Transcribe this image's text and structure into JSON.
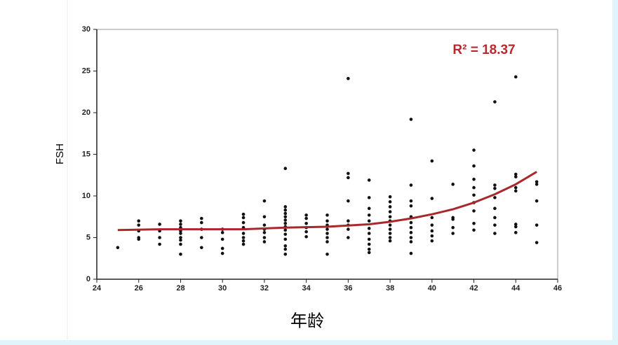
{
  "chart_data": {
    "type": "scatter",
    "annotation": "R² = 18.37",
    "annotation_color": "#b8292f",
    "x_label": "年龄",
    "y_label": "FSH",
    "xlim": [
      24,
      46
    ],
    "ylim": [
      0,
      30
    ],
    "xticks": [
      24,
      26,
      28,
      30,
      32,
      34,
      36,
      38,
      40,
      42,
      44,
      46
    ],
    "yticks": [
      0,
      5,
      10,
      15,
      20,
      25,
      30
    ],
    "series": [
      {
        "type": "scatter",
        "color": "#111111",
        "x": [
          25,
          26,
          26,
          26,
          26,
          26,
          27,
          27,
          27,
          27,
          28,
          28,
          28,
          28,
          28,
          28,
          28,
          28,
          28,
          29,
          29,
          29,
          29,
          29,
          30,
          30,
          30,
          30,
          30,
          31,
          31,
          31,
          31,
          31,
          31,
          31,
          31,
          32,
          32,
          32,
          32,
          32,
          32,
          32,
          33,
          33,
          33,
          33,
          33,
          33,
          33,
          33,
          33,
          33,
          33,
          33,
          33,
          33,
          34,
          34,
          34,
          34,
          34,
          34,
          35,
          35,
          35,
          35,
          35,
          35,
          35,
          35,
          36,
          36,
          36,
          36,
          36,
          36,
          36,
          36,
          37,
          37,
          37,
          37,
          37,
          37,
          37,
          37,
          37,
          37,
          37,
          38,
          38,
          38,
          38,
          38,
          38,
          38,
          38,
          38,
          38,
          38,
          39,
          39,
          39,
          39,
          39,
          39,
          39,
          39,
          39,
          39,
          39,
          40,
          40,
          40,
          40,
          40,
          40,
          40,
          41,
          41,
          41,
          41,
          41,
          42,
          42,
          42,
          42,
          42,
          42,
          42,
          42,
          42,
          43,
          43,
          43,
          43,
          43,
          43,
          43,
          43,
          44,
          44,
          44,
          44,
          44,
          44,
          44,
          44,
          45,
          45,
          45,
          45,
          45
        ],
        "values": [
          3.8,
          7.0,
          6.5,
          5.8,
          5.0,
          4.8,
          6.6,
          5.8,
          5.0,
          4.2,
          7.0,
          6.6,
          6.2,
          5.8,
          5.5,
          5.0,
          4.7,
          4.2,
          3.0,
          7.3,
          6.8,
          6.0,
          5.0,
          3.8,
          6.0,
          5.6,
          4.8,
          3.7,
          3.1,
          7.8,
          7.4,
          6.8,
          6.2,
          5.5,
          5.0,
          4.6,
          4.2,
          9.4,
          7.5,
          6.5,
          6.0,
          5.6,
          5.0,
          4.5,
          13.3,
          8.7,
          8.3,
          7.9,
          7.5,
          7.1,
          6.7,
          6.3,
          5.9,
          5.4,
          4.8,
          4.0,
          3.6,
          3.0,
          7.7,
          7.3,
          6.7,
          6.2,
          5.7,
          5.1,
          7.7,
          7.0,
          6.5,
          6.0,
          5.5,
          5.0,
          4.5,
          3.0,
          24.1,
          12.7,
          12.2,
          9.4,
          7.0,
          6.5,
          6.0,
          5.0,
          11.9,
          9.8,
          8.5,
          7.7,
          7.0,
          6.1,
          5.5,
          4.8,
          4.2,
          3.6,
          3.2,
          9.9,
          9.3,
          8.7,
          8.1,
          7.5,
          7.0,
          6.5,
          6.0,
          5.5,
          5.0,
          4.6,
          19.2,
          11.3,
          9.4,
          8.8,
          7.5,
          6.8,
          6.2,
          5.6,
          5.0,
          4.5,
          3.1,
          14.2,
          9.7,
          7.4,
          6.5,
          5.8,
          5.2,
          4.6,
          11.4,
          7.4,
          7.2,
          6.2,
          5.5,
          15.5,
          13.6,
          12.0,
          11.0,
          10.1,
          9.2,
          8.2,
          6.7,
          5.9,
          21.3,
          11.3,
          10.9,
          9.8,
          8.5,
          7.4,
          6.5,
          5.5,
          24.3,
          12.6,
          12.3,
          11.0,
          10.6,
          6.6,
          6.3,
          5.6,
          11.7,
          11.4,
          9.4,
          6.5,
          4.4
        ]
      },
      {
        "type": "line",
        "color": "#a8282c",
        "x": [
          25,
          27,
          29,
          31,
          33,
          35,
          37,
          38,
          39,
          40,
          41,
          42,
          43,
          44,
          45
        ],
        "values": [
          5.9,
          6.0,
          6.0,
          6.0,
          6.2,
          6.3,
          6.6,
          6.9,
          7.3,
          7.8,
          8.4,
          9.2,
          10.2,
          11.4,
          12.9
        ]
      }
    ]
  }
}
